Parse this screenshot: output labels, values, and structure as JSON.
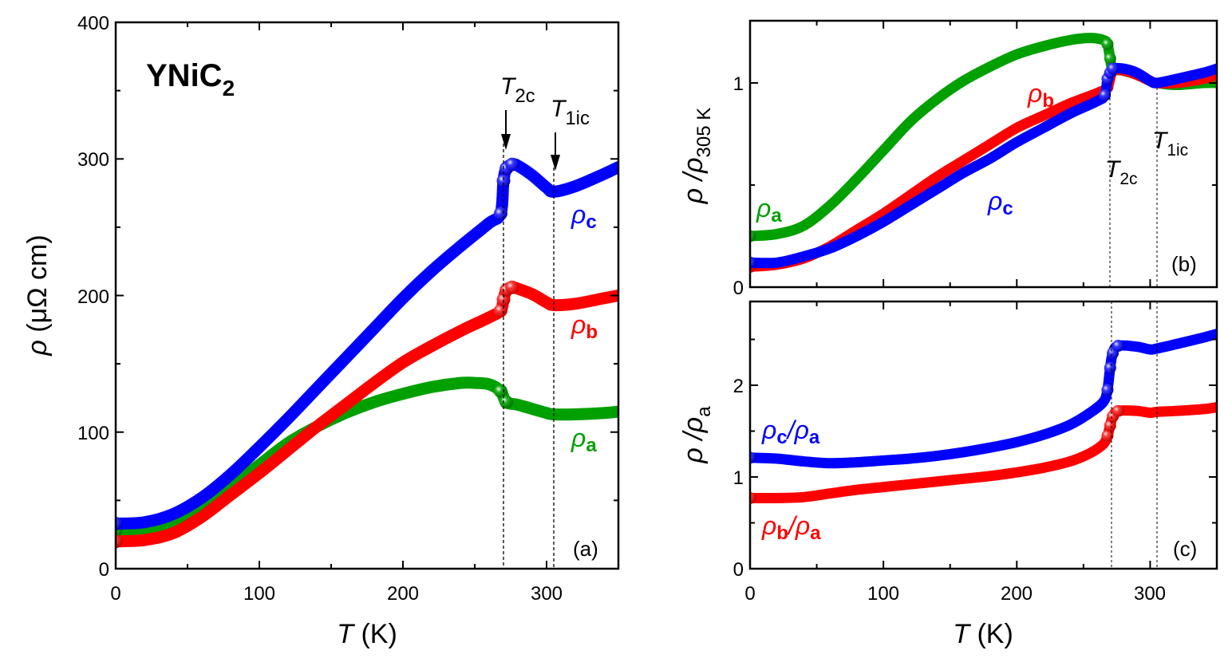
{
  "figure": {
    "compound": "YNiC",
    "compound_sub": "2",
    "colors": {
      "a": "#00a000",
      "b": "#ff0000",
      "c": "#0000ff"
    }
  },
  "panels": {
    "a": {
      "label": "(a)",
      "xlabel_italic": "T",
      "xlabel_unit": " (K)",
      "ylabel_symbol": "ρ",
      "ylabel_unit": " (μΩ cm)",
      "xticks": [
        "0",
        "100",
        "200",
        "300"
      ],
      "yticks": [
        "0",
        "100",
        "200",
        "300",
        "400"
      ],
      "series_labels": {
        "a": "ρ",
        "b": "ρ",
        "c": "ρ",
        "a_sub": "a",
        "b_sub": "b",
        "c_sub": "c"
      },
      "annotations": {
        "t2c": "T",
        "t2c_sub": "2c",
        "t1ic": "T",
        "t1ic_sub": "1ic"
      }
    },
    "b": {
      "label": "(b)",
      "ylabel_pre": "ρ /ρ",
      "ylabel_sub": "305 K",
      "yticks": [
        "0",
        "1"
      ],
      "series_labels": {
        "a": "ρ",
        "b": "ρ",
        "c": "ρ",
        "a_sub": "a",
        "b_sub": "b",
        "c_sub": "c"
      },
      "annotations": {
        "t2c": "T",
        "t2c_sub": "2c",
        "t1ic": "T",
        "t1ic_sub": "1ic"
      }
    },
    "c": {
      "label": "(c)",
      "xlabel_italic": "T",
      "xlabel_unit": " (K)",
      "ylabel_pre": "ρ /ρ",
      "ylabel_sub": "a",
      "xticks": [
        "0",
        "100",
        "200",
        "300"
      ],
      "yticks": [
        "0",
        "1",
        "2"
      ],
      "series_labels": {
        "cb": "ρ",
        "cb_sub": "c",
        "ca": "/ρ",
        "ca_sub": "a",
        "bb": "ρ",
        "bb_sub": "b",
        "ba": "/ρ",
        "ba_sub": "a"
      }
    }
  },
  "chart_data": [
    {
      "type": "scatter",
      "title": "(a) YNiC2",
      "xlabel": "T (K)",
      "ylabel": "ρ (μΩ cm)",
      "xlim": [
        0,
        350
      ],
      "ylim": [
        0,
        400
      ],
      "vlines": [
        {
          "x": 270,
          "label": "T2c"
        },
        {
          "x": 305,
          "label": "T1ic"
        }
      ],
      "series": [
        {
          "name": "ρa",
          "color": "#00a000",
          "x": [
            0,
            20,
            40,
            60,
            80,
            100,
            120,
            140,
            160,
            180,
            200,
            220,
            240,
            250,
            260,
            268,
            272,
            280,
            290,
            300,
            305,
            320,
            340,
            350
          ],
          "y": [
            28,
            29,
            34,
            45,
            60,
            76,
            92,
            104,
            114,
            122,
            128,
            133,
            136,
            136,
            135,
            130,
            122,
            120,
            117,
            114,
            113,
            113,
            114,
            115
          ]
        },
        {
          "name": "ρb",
          "color": "#ff0000",
          "x": [
            0,
            20,
            40,
            60,
            80,
            100,
            120,
            140,
            160,
            180,
            200,
            220,
            240,
            260,
            268,
            270,
            272,
            276,
            280,
            290,
            300,
            305,
            320,
            340,
            350
          ],
          "y": [
            20,
            21,
            26,
            38,
            54,
            70,
            87,
            104,
            120,
            136,
            151,
            163,
            174,
            184,
            189,
            197,
            204,
            206,
            205,
            201,
            195,
            193,
            194,
            198,
            200
          ]
        },
        {
          "name": "ρc",
          "color": "#0000ff",
          "x": [
            0,
            20,
            40,
            60,
            80,
            100,
            120,
            140,
            160,
            180,
            200,
            220,
            240,
            260,
            268,
            270,
            272,
            276,
            280,
            290,
            300,
            305,
            320,
            340,
            350
          ],
          "y": [
            33,
            34,
            40,
            52,
            69,
            89,
            110,
            132,
            154,
            176,
            198,
            218,
            236,
            253,
            260,
            284,
            293,
            296,
            295,
            288,
            279,
            276,
            280,
            289,
            294
          ]
        }
      ]
    },
    {
      "type": "scatter",
      "title": "(b)",
      "xlabel": "T (K)",
      "ylabel": "ρ/ρ305 K",
      "xlim": [
        0,
        350
      ],
      "ylim": [
        0,
        1.3
      ],
      "vlines": [
        {
          "x": 270,
          "label": "T2c"
        },
        {
          "x": 305,
          "label": "T1ic"
        }
      ],
      "series": [
        {
          "name": "ρa",
          "color": "#00a000",
          "x": [
            0,
            20,
            40,
            60,
            80,
            100,
            120,
            140,
            160,
            180,
            200,
            220,
            240,
            255,
            265,
            268,
            270,
            272,
            280,
            290,
            300,
            305,
            320,
            340,
            350
          ],
          "y": [
            0.25,
            0.26,
            0.3,
            0.4,
            0.53,
            0.67,
            0.81,
            0.92,
            1.01,
            1.08,
            1.14,
            1.18,
            1.21,
            1.22,
            1.21,
            1.19,
            1.12,
            1.07,
            1.06,
            1.04,
            1.01,
            1.0,
            0.99,
            1.0,
            1.0
          ]
        },
        {
          "name": "ρb",
          "color": "#ff0000",
          "x": [
            0,
            20,
            40,
            60,
            80,
            100,
            120,
            140,
            160,
            180,
            200,
            220,
            240,
            260,
            268,
            272,
            280,
            290,
            300,
            305,
            320,
            340,
            350
          ],
          "y": [
            0.1,
            0.11,
            0.14,
            0.2,
            0.28,
            0.36,
            0.45,
            0.54,
            0.62,
            0.7,
            0.78,
            0.84,
            0.9,
            0.95,
            0.98,
            1.06,
            1.06,
            1.04,
            1.01,
            1.0,
            1.0,
            1.02,
            1.04
          ]
        },
        {
          "name": "ρc",
          "color": "#0000ff",
          "x": [
            0,
            20,
            40,
            60,
            80,
            100,
            120,
            140,
            160,
            180,
            200,
            220,
            240,
            260,
            266,
            268,
            270,
            272,
            280,
            290,
            300,
            305,
            320,
            340,
            350
          ],
          "y": [
            0.12,
            0.12,
            0.15,
            0.19,
            0.25,
            0.32,
            0.4,
            0.48,
            0.56,
            0.63,
            0.71,
            0.78,
            0.85,
            0.91,
            0.94,
            1.02,
            1.05,
            1.07,
            1.07,
            1.05,
            1.01,
            1.0,
            1.02,
            1.05,
            1.07
          ]
        }
      ]
    },
    {
      "type": "scatter",
      "title": "(c)",
      "xlabel": "T (K)",
      "ylabel": "ρ/ρa",
      "xlim": [
        0,
        350
      ],
      "ylim": [
        0,
        2.9
      ],
      "vlines": [
        {
          "x": 270,
          "label": "T2c"
        },
        {
          "x": 305,
          "label": "T1ic"
        }
      ],
      "series": [
        {
          "name": "ρc/ρa",
          "color": "#0000ff",
          "x": [
            0,
            20,
            40,
            60,
            80,
            100,
            120,
            140,
            160,
            180,
            200,
            220,
            240,
            255,
            265,
            268,
            270,
            272,
            276,
            290,
            300,
            305,
            320,
            340,
            350
          ],
          "y": [
            1.21,
            1.2,
            1.17,
            1.15,
            1.16,
            1.18,
            1.2,
            1.23,
            1.27,
            1.32,
            1.38,
            1.46,
            1.57,
            1.7,
            1.82,
            1.95,
            2.19,
            2.35,
            2.43,
            2.42,
            2.39,
            2.4,
            2.45,
            2.52,
            2.56
          ]
        },
        {
          "name": "ρb/ρa",
          "color": "#ff0000",
          "x": [
            0,
            20,
            40,
            60,
            80,
            100,
            120,
            140,
            160,
            180,
            200,
            220,
            240,
            255,
            265,
            268,
            270,
            272,
            276,
            290,
            300,
            305,
            320,
            340,
            350
          ],
          "y": [
            0.77,
            0.77,
            0.78,
            0.82,
            0.86,
            0.89,
            0.92,
            0.95,
            0.98,
            1.01,
            1.05,
            1.1,
            1.17,
            1.26,
            1.36,
            1.45,
            1.56,
            1.66,
            1.72,
            1.72,
            1.7,
            1.71,
            1.72,
            1.74,
            1.76
          ]
        }
      ]
    }
  ]
}
